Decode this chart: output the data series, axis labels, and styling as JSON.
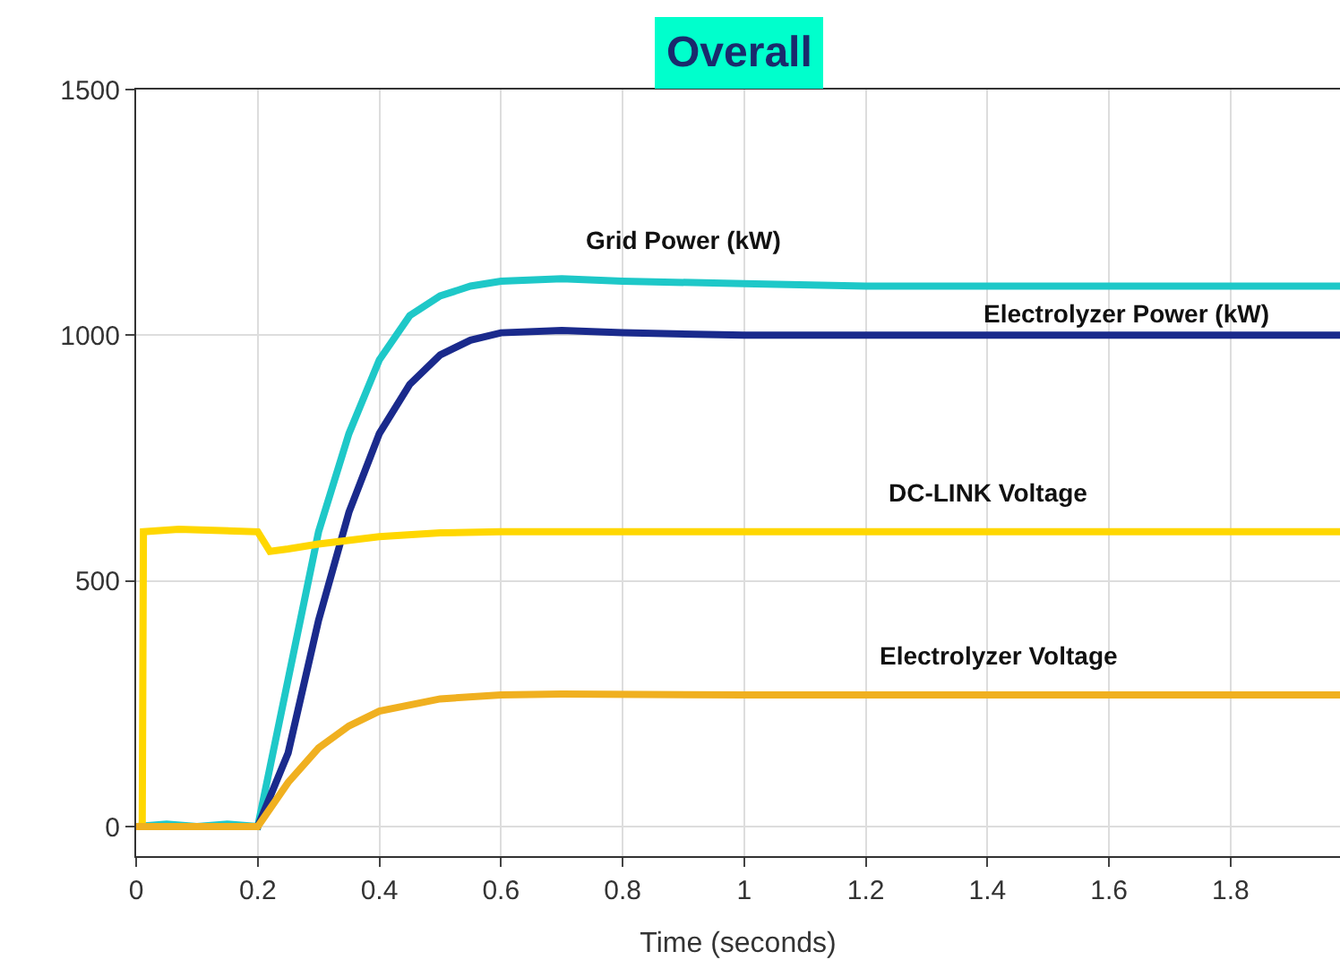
{
  "chart_data": {
    "type": "line",
    "title": "Overall",
    "xlabel": "Time (seconds)",
    "xlim": [
      0,
      1.98
    ],
    "xticks": [
      0,
      0.2,
      0.4,
      0.6,
      0.8,
      1,
      1.2,
      1.4,
      1.6,
      1.8
    ],
    "ylim": [
      -60,
      1500
    ],
    "yticks": [
      0,
      500,
      1000,
      1500
    ],
    "grid": true,
    "legend": false,
    "marker": "none",
    "line_style": "solid",
    "series": [
      {
        "name": "Grid Power (kW)",
        "color": "#1ec8c8",
        "x": [
          0,
          0.05,
          0.1,
          0.15,
          0.2,
          0.25,
          0.3,
          0.35,
          0.4,
          0.45,
          0.5,
          0.55,
          0.6,
          0.7,
          0.8,
          1.0,
          1.2,
          1.4,
          1.6,
          1.8,
          1.98
        ],
        "values": [
          0,
          5,
          0,
          5,
          0,
          300,
          600,
          800,
          950,
          1040,
          1080,
          1100,
          1110,
          1115,
          1110,
          1105,
          1100,
          1100,
          1100,
          1100,
          1100
        ]
      },
      {
        "name": "Electrolyzer Power (kW)",
        "color": "#1a2a8c",
        "x": [
          0,
          0.2,
          0.25,
          0.3,
          0.35,
          0.4,
          0.45,
          0.5,
          0.55,
          0.6,
          0.7,
          0.8,
          1.0,
          1.2,
          1.4,
          1.6,
          1.8,
          1.98
        ],
        "values": [
          0,
          0,
          150,
          420,
          640,
          800,
          900,
          960,
          990,
          1005,
          1010,
          1005,
          1000,
          1000,
          1000,
          1000,
          1000,
          1000
        ]
      },
      {
        "name": "DC-LINK Voltage",
        "color": "#ffd700",
        "x": [
          0,
          0.01,
          0.012,
          0.07,
          0.2,
          0.22,
          0.25,
          0.3,
          0.4,
          0.5,
          0.6,
          1.0,
          1.4,
          1.98
        ],
        "values": [
          0,
          0,
          600,
          605,
          600,
          560,
          565,
          575,
          590,
          598,
          600,
          600,
          600,
          600
        ]
      },
      {
        "name": "Electrolyzer Voltage",
        "color": "#f0b020",
        "x": [
          0,
          0.2,
          0.25,
          0.3,
          0.35,
          0.4,
          0.5,
          0.6,
          0.7,
          1.0,
          1.4,
          1.98
        ],
        "values": [
          0,
          0,
          90,
          160,
          205,
          235,
          260,
          268,
          270,
          268,
          268,
          268
        ]
      }
    ]
  }
}
